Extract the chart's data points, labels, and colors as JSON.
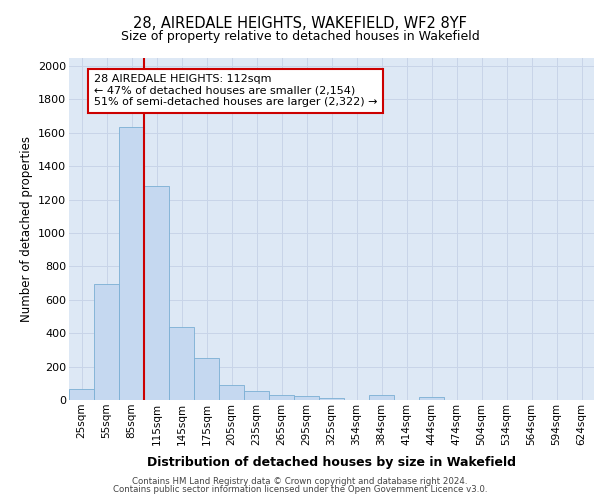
{
  "title": "28, AIREDALE HEIGHTS, WAKEFIELD, WF2 8YF",
  "subtitle": "Size of property relative to detached houses in Wakefield",
  "xlabel": "Distribution of detached houses by size in Wakefield",
  "ylabel": "Number of detached properties",
  "categories": [
    "25sqm",
    "55sqm",
    "85sqm",
    "115sqm",
    "145sqm",
    "175sqm",
    "205sqm",
    "235sqm",
    "265sqm",
    "295sqm",
    "325sqm",
    "354sqm",
    "384sqm",
    "414sqm",
    "444sqm",
    "474sqm",
    "504sqm",
    "534sqm",
    "564sqm",
    "594sqm",
    "624sqm"
  ],
  "values": [
    65,
    695,
    1635,
    1280,
    435,
    250,
    88,
    52,
    30,
    25,
    10,
    0,
    28,
    0,
    18,
    0,
    0,
    0,
    0,
    0,
    0
  ],
  "bar_color": "#c5d8f0",
  "bar_edge_color": "#7aafd4",
  "vline_color": "#cc0000",
  "vline_x_index": 3,
  "annotation_text": "28 AIREDALE HEIGHTS: 112sqm\n← 47% of detached houses are smaller (2,154)\n51% of semi-detached houses are larger (2,322) →",
  "annotation_box_color": "#ffffff",
  "annotation_box_edge": "#cc0000",
  "ylim": [
    0,
    2050
  ],
  "yticks": [
    0,
    200,
    400,
    600,
    800,
    1000,
    1200,
    1400,
    1600,
    1800,
    2000
  ],
  "grid_color": "#c8d4e8",
  "background_color": "#dde8f5",
  "footer_line1": "Contains HM Land Registry data © Crown copyright and database right 2024.",
  "footer_line2": "Contains public sector information licensed under the Open Government Licence v3.0."
}
